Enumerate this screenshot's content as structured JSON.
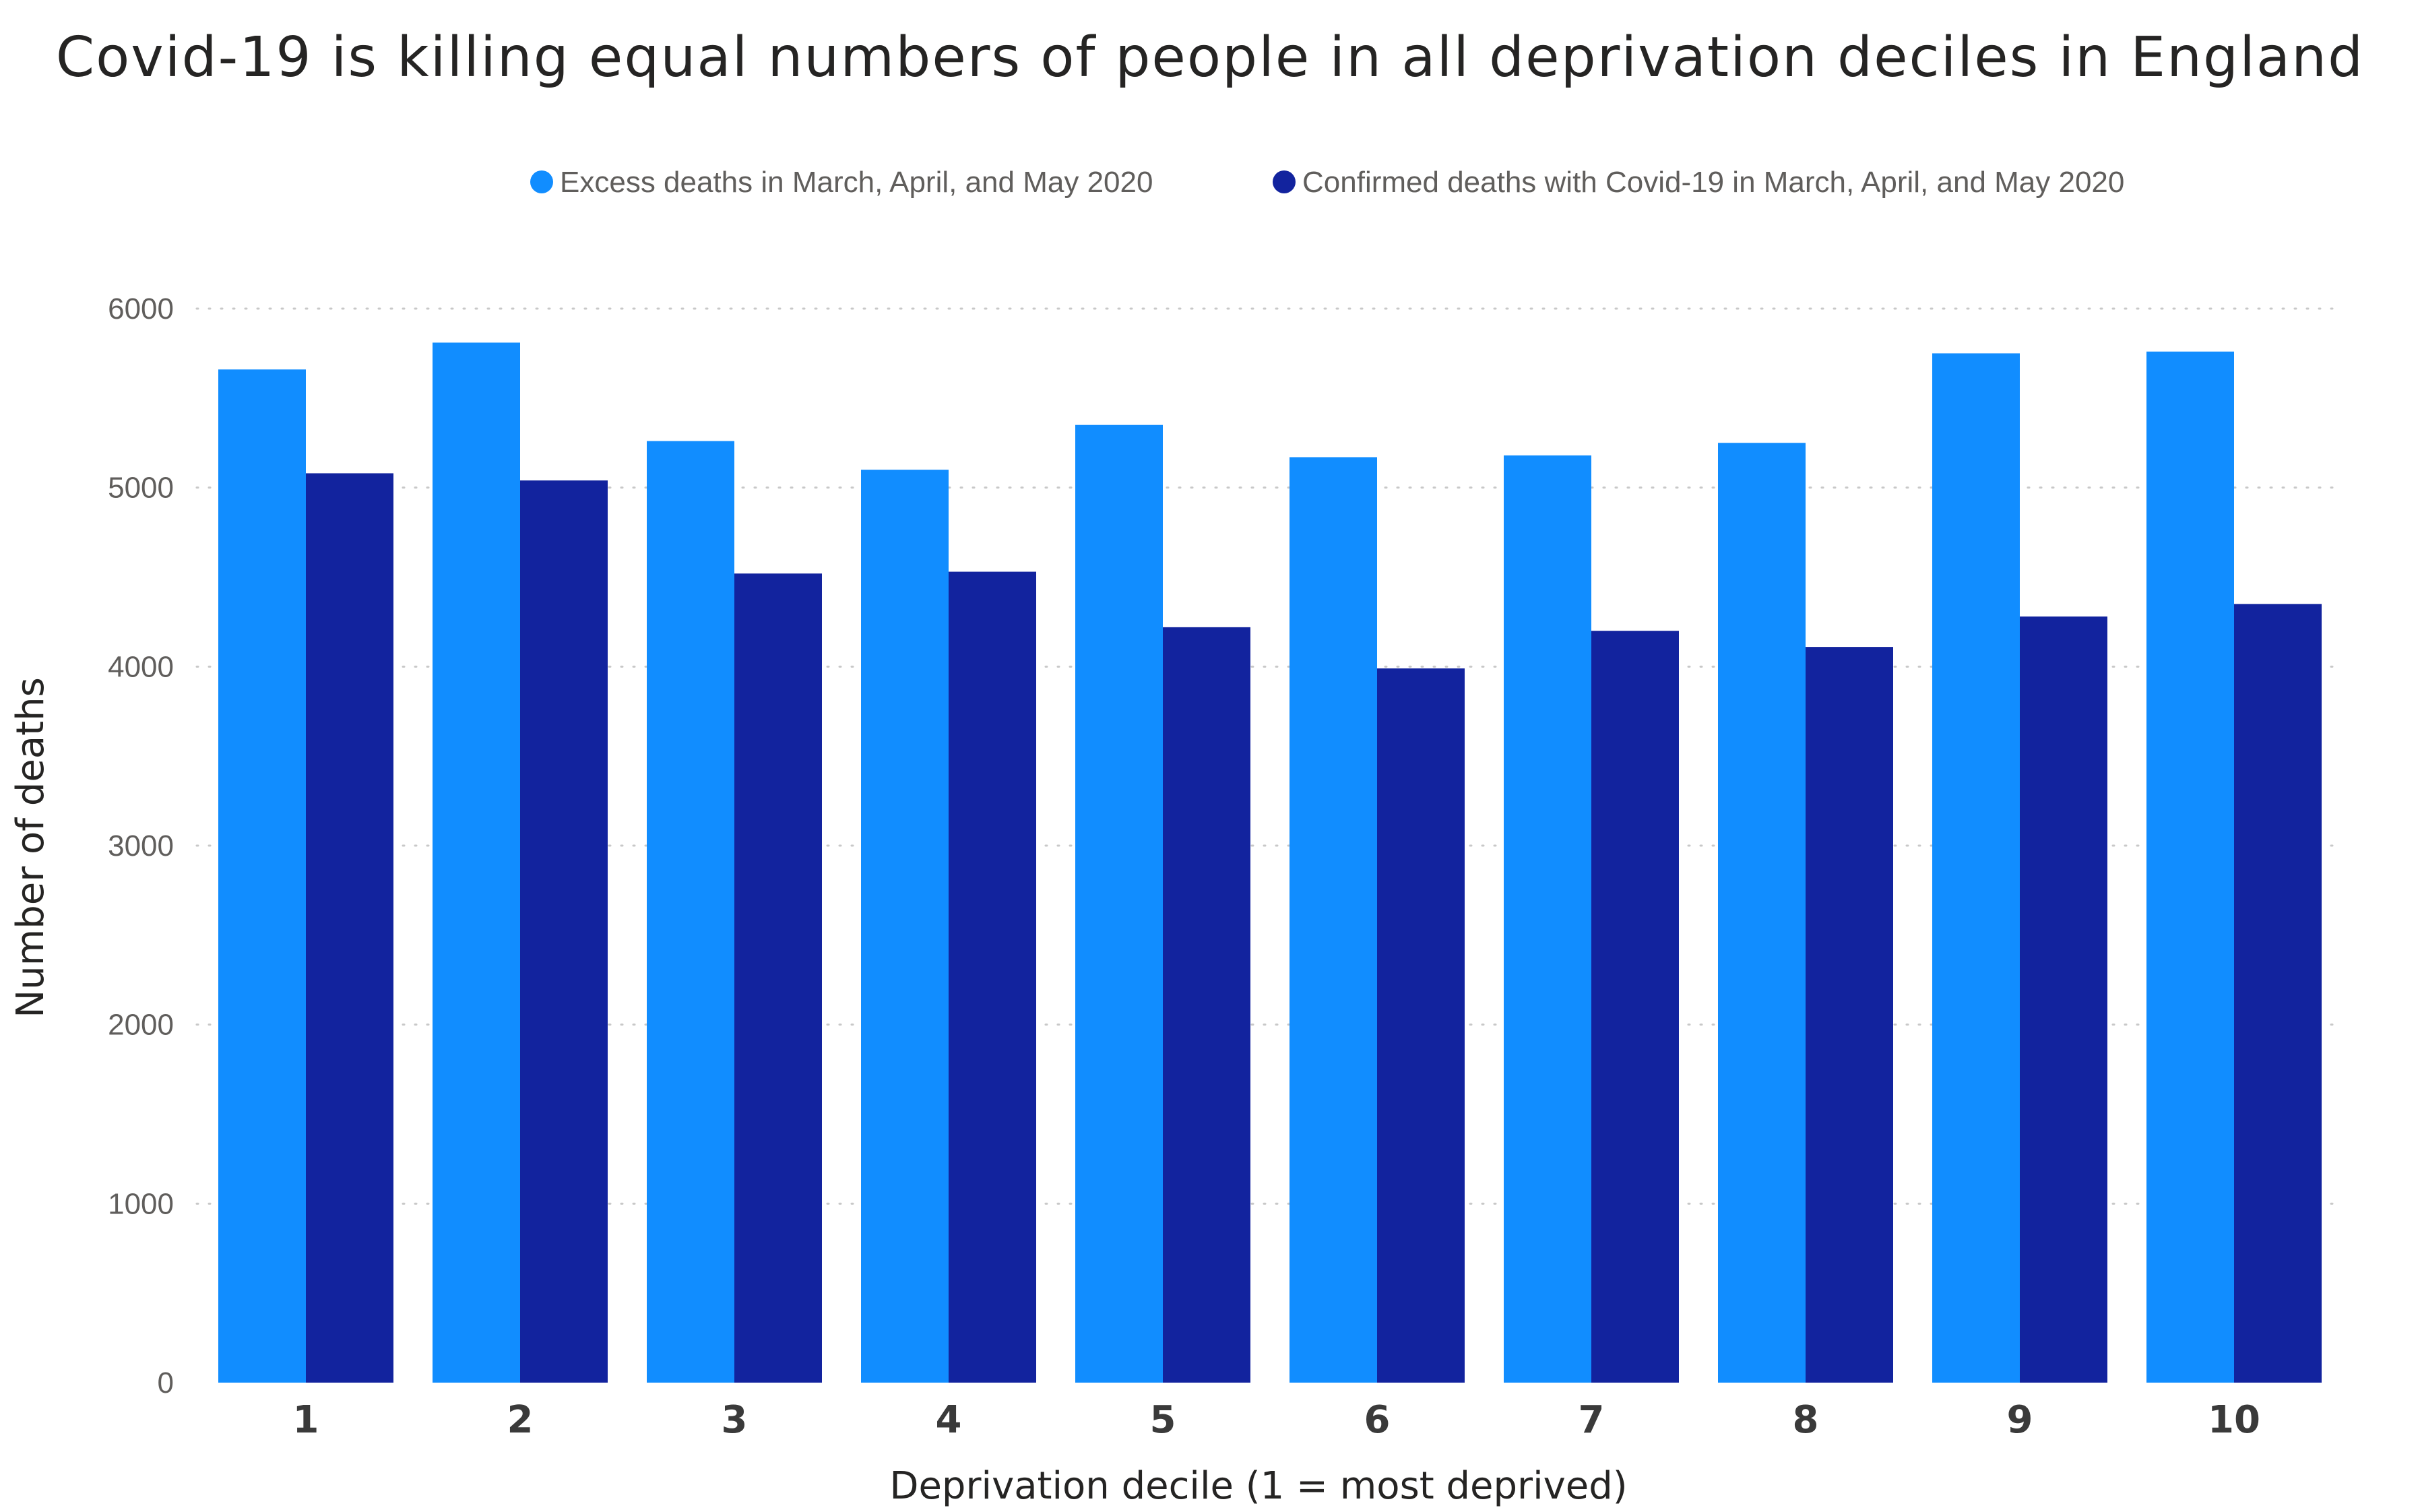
{
  "chart_data": {
    "type": "bar",
    "title": "Covid-19 is killing equal numbers of people in all deprivation deciles in England",
    "xlabel": "Deprivation decile (1 = most deprived)",
    "ylabel": "Number of deaths",
    "ylim": [
      0,
      6000
    ],
    "yticks": [
      0,
      1000,
      2000,
      3000,
      4000,
      5000,
      6000
    ],
    "grid": true,
    "legend_position": "top",
    "categories": [
      "1",
      "2",
      "3",
      "4",
      "5",
      "6",
      "7",
      "8",
      "9",
      "10"
    ],
    "series": [
      {
        "name": "Excess deaths in March, April, and May 2020",
        "color": "#118dff",
        "values": [
          5660,
          5810,
          5260,
          5100,
          5350,
          5170,
          5180,
          5250,
          5750,
          5760
        ]
      },
      {
        "name": "Confirmed deaths with Covid-19 in March, April, and May 2020",
        "color": "#12239e",
        "values": [
          5080,
          5040,
          4520,
          4530,
          4220,
          3990,
          4200,
          4110,
          4280,
          4350
        ]
      }
    ]
  }
}
